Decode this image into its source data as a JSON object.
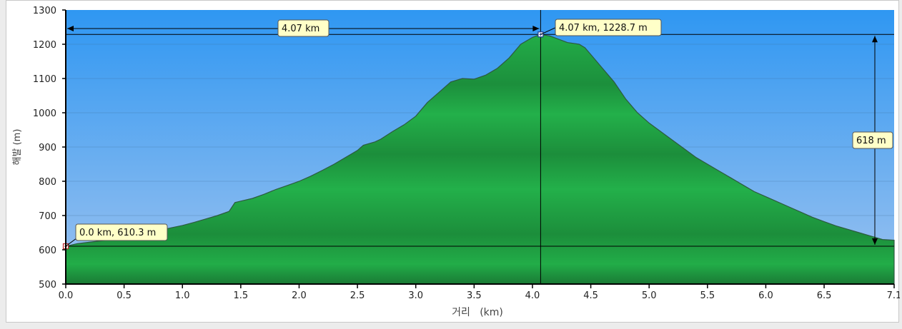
{
  "chart_data": {
    "type": "area",
    "xlabel": "거리   (km)",
    "ylabel": "해발 (m)",
    "xlim": [
      0,
      7.1
    ],
    "ylim": [
      500,
      1300
    ],
    "x_ticks": [
      "0.0",
      "0.5",
      "1.0",
      "1.5",
      "2.0",
      "2.5",
      "3.0",
      "3.5",
      "4.0",
      "4.5",
      "5.0",
      "5.5",
      "6.0",
      "6.5",
      "7.1"
    ],
    "y_ticks": [
      "500",
      "600",
      "700",
      "800",
      "900",
      "1000",
      "1100",
      "1200",
      "1300"
    ],
    "grid": true,
    "colors": {
      "sky_top": "#2f97f2",
      "sky_bottom": "#9cc2ef",
      "fill_light": "#22ad48",
      "fill_dark": "#1a7a35",
      "outline": "#2d5a40",
      "label_bg": "#ffffc8"
    },
    "series": [
      {
        "x": [
          0.0,
          0.1,
          0.2,
          0.3,
          0.4,
          0.5,
          0.6,
          0.7,
          0.8,
          0.9,
          1.0,
          1.1,
          1.2,
          1.3,
          1.4,
          1.45,
          1.5,
          1.6,
          1.7,
          1.8,
          1.9,
          2.0,
          2.1,
          2.2,
          2.3,
          2.4,
          2.5,
          2.55,
          2.6,
          2.65,
          2.7,
          2.8,
          2.9,
          3.0,
          3.1,
          3.2,
          3.3,
          3.4,
          3.5,
          3.6,
          3.7,
          3.8,
          3.9,
          4.0,
          4.07,
          4.15,
          4.2,
          4.3,
          4.4,
          4.45,
          4.5,
          4.6,
          4.7,
          4.8,
          4.9,
          5.0,
          5.1,
          5.2,
          5.3,
          5.4,
          5.5,
          5.6,
          5.7,
          5.8,
          5.9,
          6.0,
          6.1,
          6.2,
          6.3,
          6.4,
          6.5,
          6.6,
          6.7,
          6.8,
          6.9,
          7.0,
          7.1
        ],
        "y": [
          610.3,
          618,
          622,
          626,
          630,
          635,
          641,
          648,
          656,
          664,
          671,
          680,
          690,
          700,
          712,
          738,
          742,
          750,
          762,
          776,
          788,
          800,
          815,
          832,
          850,
          870,
          890,
          905,
          910,
          915,
          923,
          945,
          965,
          990,
          1030,
          1060,
          1090,
          1100,
          1098,
          1110,
          1130,
          1160,
          1200,
          1220,
          1228.7,
          1224,
          1218,
          1205,
          1200,
          1190,
          1170,
          1130,
          1090,
          1040,
          1000,
          970,
          945,
          920,
          895,
          870,
          850,
          830,
          810,
          790,
          770,
          755,
          740,
          725,
          710,
          695,
          682,
          670,
          660,
          650,
          640,
          630,
          628
        ]
      }
    ],
    "annotations": {
      "start_label": "0.0 km, 610.3 m",
      "peak_label": "4.07 km, 1228.7 m",
      "distance_label": "4.07 km",
      "height_label": "618 m"
    }
  }
}
